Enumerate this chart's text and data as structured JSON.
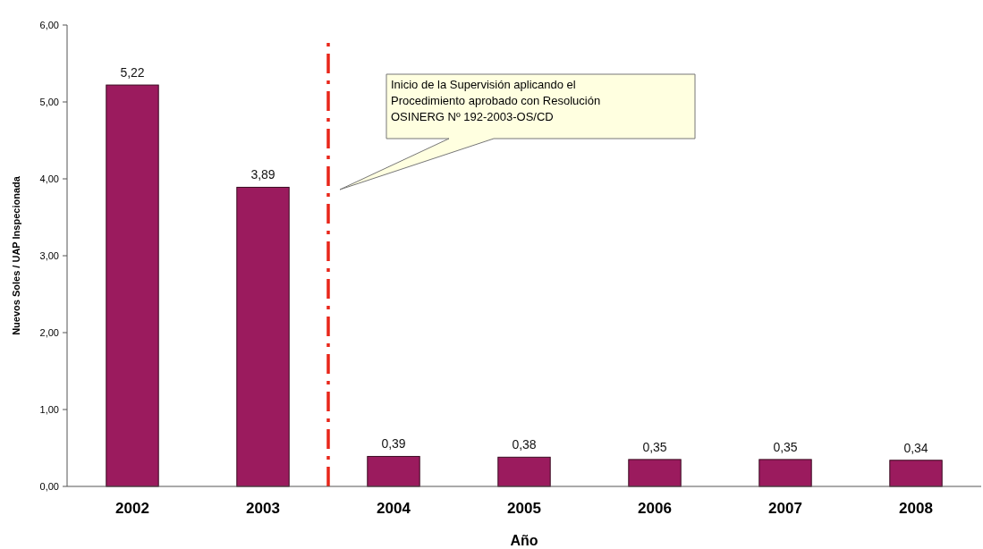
{
  "chart_data": {
    "type": "bar",
    "xlabel": "Año",
    "ylabel": "Nuevos Soles / UAP Inspecionada",
    "x": [
      2002,
      2003,
      2004,
      2005,
      2006,
      2007,
      2008
    ],
    "values": [
      5.22,
      3.89,
      0.39,
      0.38,
      0.35,
      0.35,
      0.34
    ],
    "value_labels": [
      "5,22",
      "3,89",
      "0,39",
      "0,38",
      "0,35",
      "0,35",
      "0,34"
    ],
    "color": "#9b1b5e",
    "xlim": [
      2001.5,
      2008.5
    ],
    "xticks": [
      2002,
      2003,
      2004,
      2005,
      2006,
      2007,
      2008
    ],
    "ylim": [
      0,
      6
    ],
    "yticks": [
      {
        "value": 0,
        "label": "0,00"
      },
      {
        "value": 1,
        "label": "1,00"
      },
      {
        "value": 2,
        "label": "2,00"
      },
      {
        "value": 3,
        "label": "3,00"
      },
      {
        "value": 4,
        "label": "4,00"
      },
      {
        "value": 5,
        "label": "5,00"
      },
      {
        "value": 6,
        "label": "6,00"
      }
    ],
    "ref_lines": [
      {
        "axis": "x",
        "value": 2003.5,
        "color": "#e8261a",
        "line_style": "dashed"
      }
    ],
    "annotations": [
      "Inicio de la Supervisión aplicando el Procedimiento aprobado con Resolución OSINERG Nº 192-2003-OS/CD"
    ],
    "grid": false
  }
}
